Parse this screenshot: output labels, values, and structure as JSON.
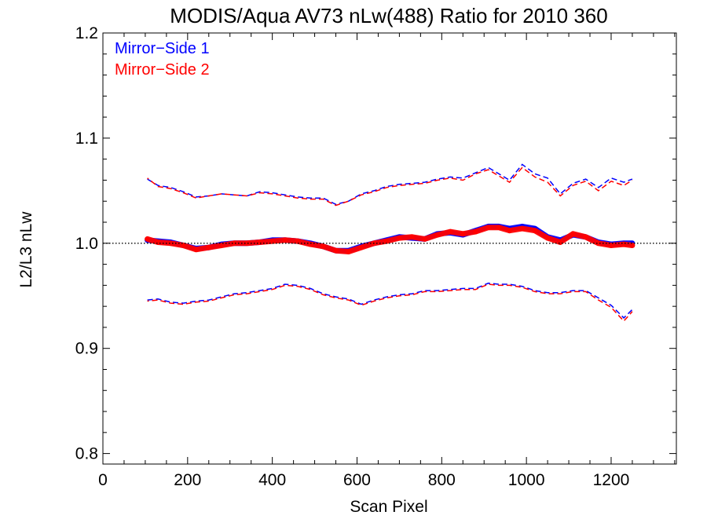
{
  "chart_data": {
    "type": "line",
    "title": "MODIS/Aqua AV73 nLw(488) Ratio for 2010 360",
    "xlabel": "Scan Pixel",
    "ylabel": "L2/L3 nLw",
    "xlim": [
      0,
      1354
    ],
    "ylim": [
      0.79,
      1.2
    ],
    "x_ticks": [
      "0",
      "200",
      "400",
      "600",
      "800",
      "1000",
      "1200"
    ],
    "y_ticks": [
      "0.8",
      "0.9",
      "1.0",
      "1.1",
      "1.2"
    ],
    "reference_line": 1.0,
    "legend": {
      "placement": "top-left",
      "entries": [
        "Mirror−Side 1",
        "Mirror−Side 2"
      ]
    },
    "colors": {
      "Mirror−Side 1": "#0000ff",
      "Mirror−Side 2": "#ff0000",
      "reference": "#000000"
    },
    "x": [
      105,
      130,
      160,
      190,
      220,
      250,
      280,
      310,
      340,
      370,
      400,
      430,
      460,
      490,
      520,
      550,
      580,
      610,
      640,
      670,
      700,
      730,
      760,
      790,
      820,
      850,
      880,
      910,
      935,
      960,
      990,
      1020,
      1050,
      1080,
      1110,
      1140,
      1170,
      1200,
      1230,
      1250
    ],
    "series": [
      {
        "name": "Mirror−Side 1",
        "mean": [
          1.003,
          1.002,
          1.001,
          0.998,
          0.995,
          0.996,
          0.999,
          1.0,
          1.0,
          1.001,
          1.003,
          1.003,
          1.002,
          1.0,
          0.997,
          0.993,
          0.993,
          0.997,
          1.0,
          1.003,
          1.006,
          1.005,
          1.004,
          1.009,
          1.01,
          1.008,
          1.012,
          1.016,
          1.016,
          1.014,
          1.016,
          1.014,
          1.006,
          1.003,
          1.008,
          1.006,
          1.001,
          0.999,
          1.0,
          1.0
        ],
        "upper": [
          1.061,
          1.055,
          1.053,
          1.049,
          1.044,
          1.045,
          1.047,
          1.046,
          1.045,
          1.049,
          1.048,
          1.046,
          1.044,
          1.043,
          1.043,
          1.037,
          1.04,
          1.047,
          1.05,
          1.054,
          1.056,
          1.057,
          1.058,
          1.061,
          1.063,
          1.062,
          1.067,
          1.072,
          1.066,
          1.06,
          1.075,
          1.066,
          1.062,
          1.047,
          1.057,
          1.061,
          1.053,
          1.062,
          1.058,
          1.061
        ],
        "lower": [
          0.946,
          0.947,
          0.944,
          0.943,
          0.945,
          0.946,
          0.949,
          0.952,
          0.953,
          0.955,
          0.957,
          0.961,
          0.96,
          0.957,
          0.952,
          0.949,
          0.947,
          0.942,
          0.946,
          0.949,
          0.951,
          0.952,
          0.955,
          0.955,
          0.956,
          0.957,
          0.957,
          0.962,
          0.961,
          0.961,
          0.959,
          0.955,
          0.953,
          0.953,
          0.955,
          0.955,
          0.948,
          0.941,
          0.929,
          0.937
        ]
      },
      {
        "name": "Mirror−Side 2",
        "mean": [
          1.004,
          1.001,
          1.0,
          0.998,
          0.994,
          0.996,
          0.998,
          1.0,
          1.0,
          1.001,
          1.002,
          1.003,
          1.002,
          0.999,
          0.997,
          0.993,
          0.992,
          0.996,
          1.0,
          1.002,
          1.005,
          1.006,
          1.004,
          1.008,
          1.011,
          1.009,
          1.011,
          1.015,
          1.015,
          1.012,
          1.014,
          1.012,
          1.005,
          1.001,
          1.009,
          1.006,
          1.0,
          0.998,
          0.999,
          0.998
        ],
        "upper": [
          1.062,
          1.054,
          1.052,
          1.048,
          1.043,
          1.045,
          1.047,
          1.046,
          1.045,
          1.048,
          1.047,
          1.045,
          1.043,
          1.042,
          1.042,
          1.036,
          1.04,
          1.046,
          1.049,
          1.053,
          1.055,
          1.056,
          1.057,
          1.06,
          1.062,
          1.06,
          1.066,
          1.07,
          1.064,
          1.058,
          1.072,
          1.063,
          1.058,
          1.045,
          1.055,
          1.059,
          1.05,
          1.059,
          1.055,
          1.06
        ],
        "lower": [
          0.945,
          0.946,
          0.943,
          0.942,
          0.944,
          0.945,
          0.948,
          0.951,
          0.952,
          0.954,
          0.956,
          0.96,
          0.959,
          0.956,
          0.951,
          0.948,
          0.946,
          0.941,
          0.945,
          0.948,
          0.95,
          0.951,
          0.954,
          0.954,
          0.955,
          0.956,
          0.956,
          0.961,
          0.96,
          0.96,
          0.958,
          0.954,
          0.952,
          0.952,
          0.954,
          0.954,
          0.946,
          0.939,
          0.926,
          0.935
        ]
      }
    ]
  }
}
